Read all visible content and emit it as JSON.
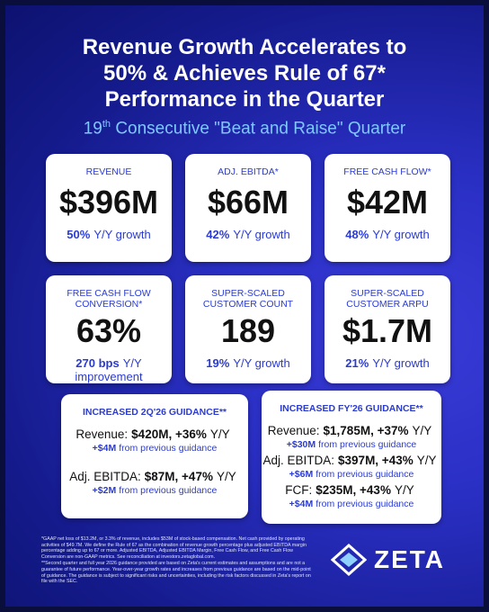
{
  "header": {
    "title": [
      "Revenue Growth Accelerates to",
      "50% & Achieves Rule of 67*",
      "Performance in the Quarter"
    ],
    "subtitle": {
      "ordinal": "19",
      "suffix": "th",
      "text": "Consecutive \"Beat and Raise\" Quarter"
    }
  },
  "metrics": [
    {
      "label": [
        "REVENUE"
      ],
      "value": "$396M",
      "change": "50%",
      "change_label": "Y/Y growth"
    },
    {
      "label": [
        "ADJ. EBITDA*"
      ],
      "value": "$66M",
      "change": "42%",
      "change_label": "Y/Y growth"
    },
    {
      "label": [
        "FREE CASH FLOW*"
      ],
      "value": "$42M",
      "change": "48%",
      "change_label": "Y/Y growth"
    },
    {
      "label": [
        "FREE CASH FLOW",
        "CONVERSION*"
      ],
      "value": "63%",
      "change": "270 bps",
      "change_label": "Y/Y improvement"
    },
    {
      "label": [
        "SUPER-SCALED",
        "CUSTOMER COUNT"
      ],
      "value": "189",
      "change": "19%",
      "change_label": "Y/Y growth"
    },
    {
      "label": [
        "SUPER-SCALED",
        "CUSTOMER ARPU"
      ],
      "value": "$1.7M",
      "change": "21%",
      "change_label": "Y/Y growth"
    }
  ],
  "guidance": [
    {
      "title": "INCREASED 2Q'26 GUIDANCE**",
      "items": [
        {
          "metric": "Revenue:",
          "figure": "$420M, +36%",
          "period": "Y/Y",
          "raise": "+$4M",
          "raise_note": "from previous guidance"
        },
        {
          "metric": "Adj. EBITDA:",
          "figure": "$87M, +47%",
          "period": "Y/Y",
          "raise": "+$2M",
          "raise_note": "from previous guidance"
        }
      ]
    },
    {
      "title": "INCREASED FY'26 GUIDANCE**",
      "items": [
        {
          "metric": "Revenue:",
          "figure": "$1,785M, +37%",
          "period": "Y/Y",
          "raise": "+$30M",
          "raise_note": "from previous guidance"
        },
        {
          "metric": "Adj. EBITDA:",
          "figure": "$397M, +43%",
          "period": "Y/Y",
          "raise": "+$6M",
          "raise_note": "from previous guidance"
        },
        {
          "metric": "FCF:",
          "figure": "$235M, +43%",
          "period": "Y/Y",
          "raise": "+$4M",
          "raise_note": "from previous guidance"
        }
      ]
    }
  ],
  "footnotes": [
    "*GAAP net loss of $13.2M, or 3.3% of revenue, includes $53M of stock-based compensation. Net cash provided by operating activities of $49.7M. We define the Rule of 67 as the combination of revenue growth percentage plus adjusted EBITDA margin percentage adding up to 67 or more. Adjusted EBITDA, Adjusted EBITDA Margin, Free Cash Flow, and Free Cash Flow Conversion are non-GAAP metrics. See reconciliation at investors.zetaglobal.com.",
    "**Second quarter and full year 2026 guidance provided are based on Zeta's current estimates and assumptions and are not a guarantee of future performance. Year-over-year growth rates and increases from previous guidance are based on the mid-point of guidance. The guidance is subject to significant risks and uncertainties, including the risk factors discussed in Zeta's report on file with the SEC."
  ],
  "logo": "ZETA"
}
